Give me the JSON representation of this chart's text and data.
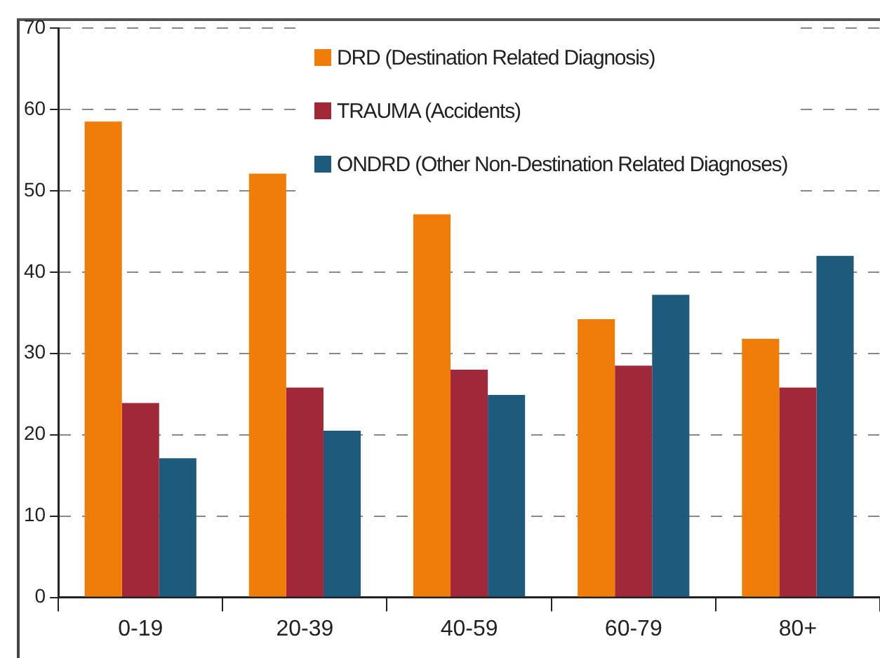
{
  "chart_data": {
    "type": "bar",
    "categories": [
      "0-19",
      "20-39",
      "40-59",
      "60-79",
      "80+"
    ],
    "series": [
      {
        "name": "DRD (Destination Related Diagnosis)",
        "color": "#f07d0a",
        "values": [
          58.5,
          52.1,
          47.1,
          34.2,
          31.8
        ]
      },
      {
        "name": "TRAUMA (Accidents)",
        "color": "#a12838",
        "values": [
          23.9,
          25.8,
          28.0,
          28.5,
          25.8
        ]
      },
      {
        "name": "ONDRD (Other Non-Destination Related Diagnoses)",
        "color": "#1e5a7c",
        "values": [
          17.1,
          20.5,
          24.9,
          37.2,
          42.0
        ]
      }
    ],
    "ylim": [
      0,
      70
    ],
    "yticks": [
      0,
      10,
      20,
      30,
      40,
      50,
      60,
      70
    ],
    "grid": "y",
    "legend": "top right"
  }
}
